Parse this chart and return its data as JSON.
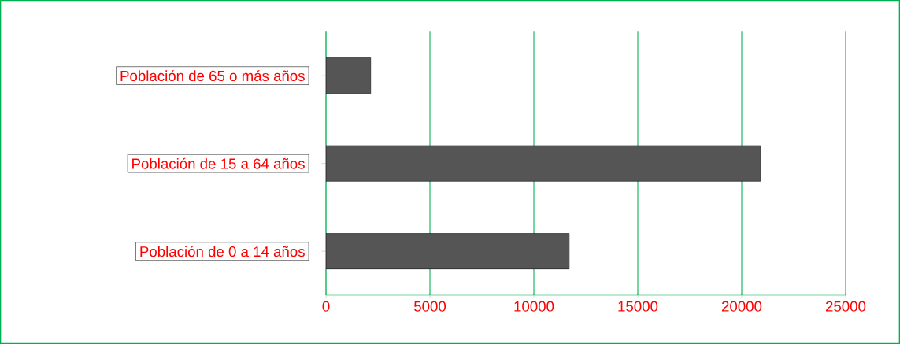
{
  "chart_data": {
    "type": "bar",
    "orientation": "horizontal",
    "categories": [
      "Población de 65 o más años",
      "Población de 15 a 64 años",
      "Población de 0 a 14 años"
    ],
    "values": [
      2150,
      20900,
      11700
    ],
    "color": "#555555",
    "xlim": [
      0,
      25000
    ],
    "xticks": [
      0,
      5000,
      10000,
      15000,
      20000,
      25000
    ],
    "grid": "x"
  }
}
